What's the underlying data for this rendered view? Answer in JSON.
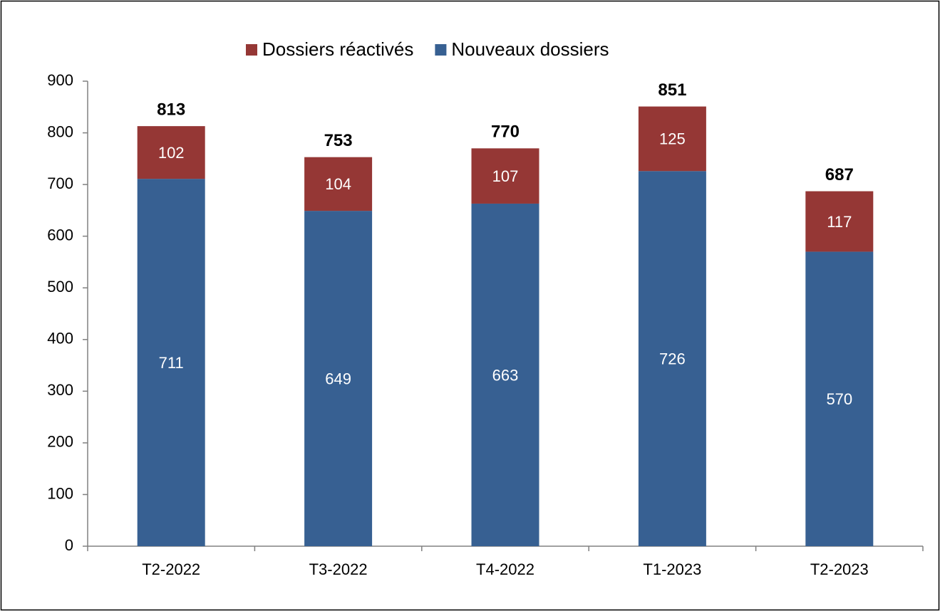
{
  "chart_data": {
    "type": "stacked_bar",
    "categories": [
      "T2-2022",
      "T3-2022",
      "T4-2022",
      "T1-2023",
      "T2-2023"
    ],
    "series": [
      {
        "name": "Dossiers réactivés",
        "color": "#953735",
        "values": [
          102,
          104,
          107,
          125,
          117
        ]
      },
      {
        "name": "Nouveaux dossiers",
        "color": "#376092",
        "values": [
          711,
          649,
          663,
          726,
          570
        ]
      }
    ],
    "totals": [
      813,
      753,
      770,
      851,
      687
    ],
    "ylim": [
      0,
      900
    ],
    "yticks": [
      0,
      100,
      200,
      300,
      400,
      500,
      600,
      700,
      800,
      900
    ],
    "grid": false,
    "legend": "top"
  }
}
